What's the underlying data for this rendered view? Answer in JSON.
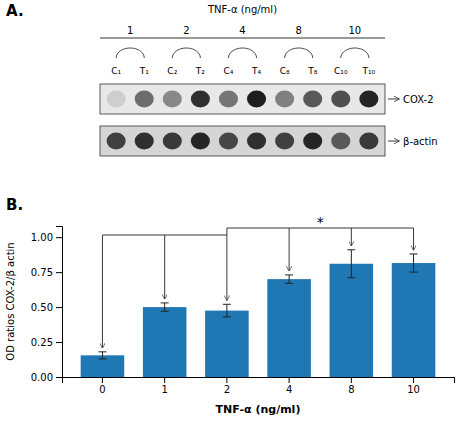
{
  "chart_data": [
    {
      "type": "blot",
      "title": "TNF-α (ng/ml)",
      "annotations": [
        "A."
      ],
      "groups": [
        "1",
        "2",
        "4",
        "8",
        "10"
      ],
      "categories": [
        "C₁",
        "T₁",
        "C₂",
        "T₂",
        "C₄",
        "T₄",
        "C₈",
        "T₈",
        "C₁₀",
        "T₁₀"
      ],
      "series": [
        {
          "name": "COX-2",
          "values": [
            0.3,
            0.65,
            0.55,
            0.85,
            0.62,
            0.9,
            0.58,
            0.72,
            0.75,
            0.88
          ]
        },
        {
          "name": "β-actin",
          "values": [
            0.8,
            0.85,
            0.82,
            0.88,
            0.78,
            0.85,
            0.8,
            0.88,
            0.72,
            0.82
          ]
        }
      ]
    },
    {
      "type": "bar",
      "xlabel": "TNF-α (ng/ml)",
      "ylabel": "OD ratios COX-2/β actin",
      "annotations": [
        "B.",
        "*"
      ],
      "categories": [
        0,
        1,
        2,
        4,
        8,
        10
      ],
      "values": [
        0.155,
        0.5,
        0.475,
        0.7,
        0.81,
        0.815
      ],
      "errors": [
        0.025,
        0.03,
        0.045,
        0.03,
        0.1,
        0.065
      ],
      "ylim": [
        0.0,
        1.08
      ],
      "yticks": [
        {
          "value": 0.0,
          "label": "0.00"
        },
        {
          "value": 0.25,
          "label": "0.25"
        },
        {
          "value": 0.5,
          "label": "0.50"
        },
        {
          "value": 0.75,
          "label": "0.75"
        },
        {
          "value": 1.0,
          "label": "1.00"
        }
      ]
    }
  ]
}
